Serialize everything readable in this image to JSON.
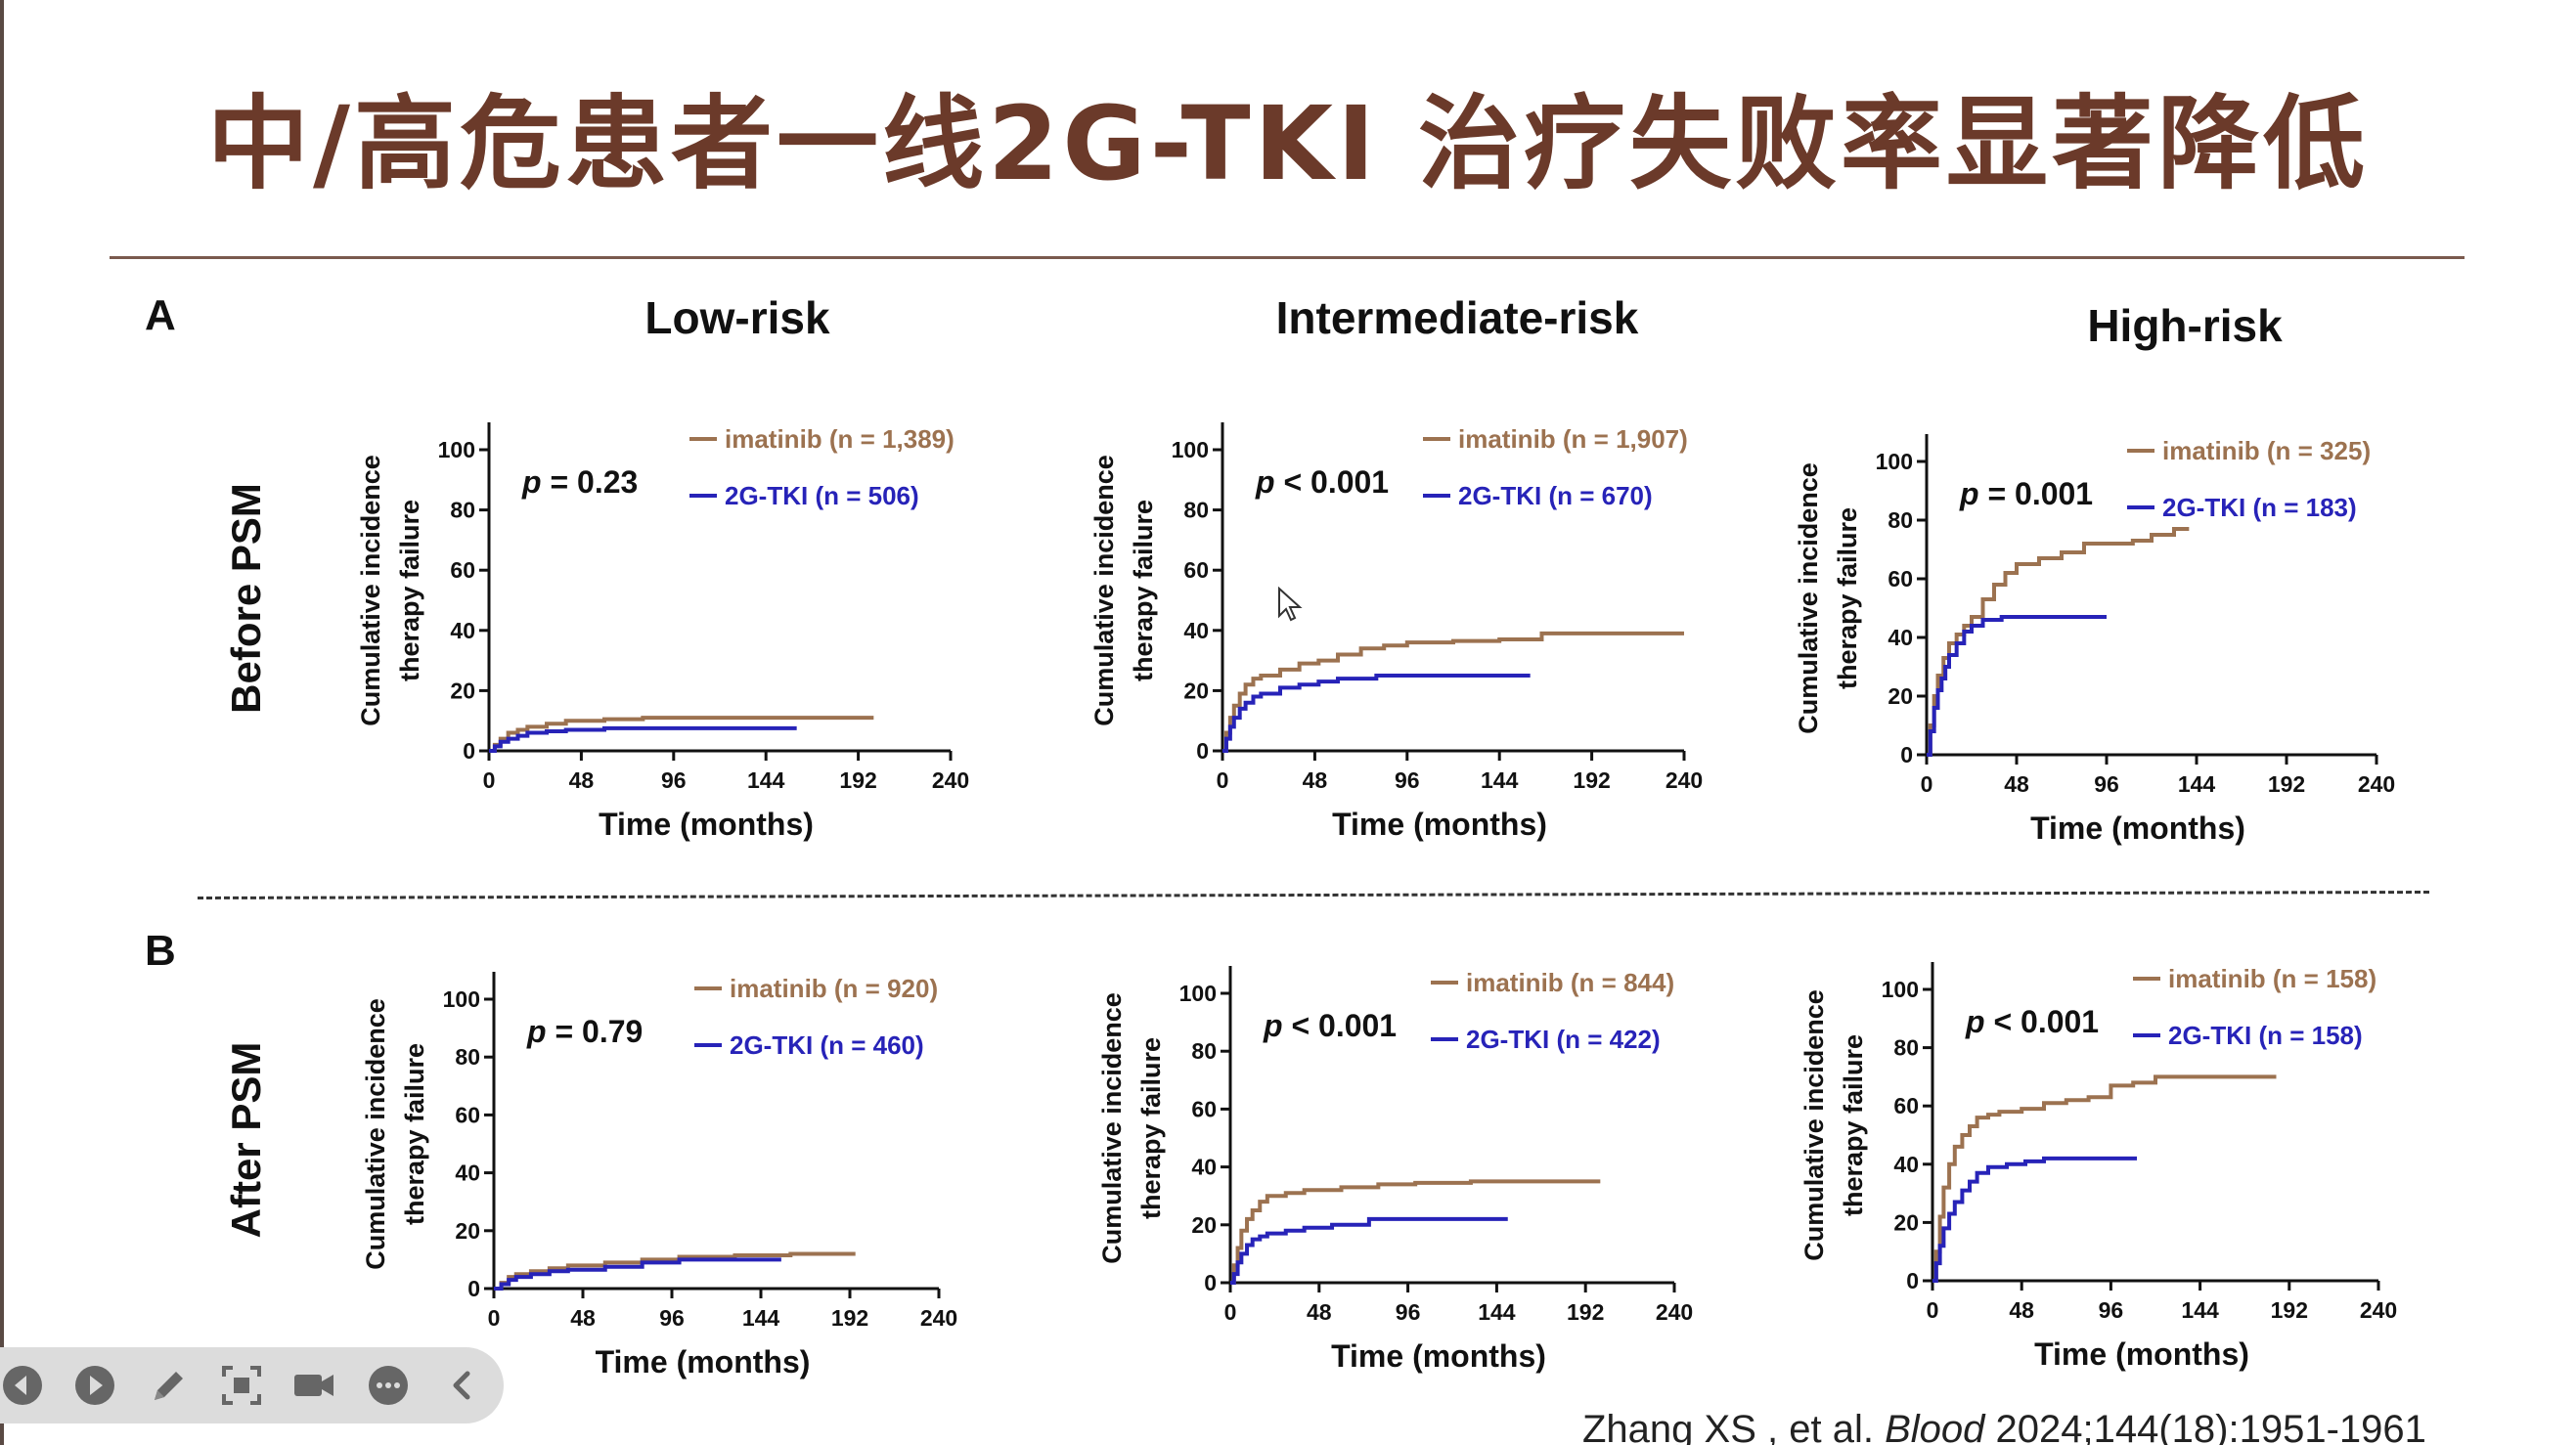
{
  "slide": {
    "title": "中/高危患者一线2G-TKI 治疗失败率显著降低",
    "panel_a": "A",
    "panel_b": "B",
    "row_before": "Before PSM",
    "row_after": "After PSM",
    "risk_low": "Low-risk",
    "risk_intermediate": "Intermediate-risk",
    "risk_high": "High-risk"
  },
  "citation": {
    "authors": "Zhang XS , et al.",
    "journal": "Blood",
    "details": "2024;144(18):1951-1961"
  },
  "colors": {
    "imatinib": "#9c7250",
    "tki": "#2723b8",
    "title": "#6b3a2a"
  },
  "toolbar": {
    "buttons": [
      "prev-icon",
      "play-icon",
      "pen-icon",
      "screenshot-icon",
      "camera-icon",
      "more-icon",
      "collapse-icon"
    ]
  },
  "chart_data": [
    {
      "type": "line",
      "panel": "A",
      "risk": "Low-risk",
      "psm": "Before PSM",
      "ylabel": [
        "Cumulative incidence",
        "therapy failure"
      ],
      "xlabel": "Time (months)",
      "xticks": [
        0,
        48,
        96,
        144,
        192,
        240
      ],
      "yticks": [
        0,
        20,
        40,
        60,
        80,
        100
      ],
      "xlim": [
        0,
        240
      ],
      "ylim": [
        0,
        100
      ],
      "p_label": "p",
      "p_text": "= 0.23",
      "series": [
        {
          "name": "imatinib (n = 1,389)",
          "color": "#9c7250",
          "x": [
            0,
            3,
            6,
            10,
            15,
            20,
            30,
            40,
            60,
            80,
            100,
            130,
            160,
            200
          ],
          "y": [
            0,
            2,
            4,
            6,
            7,
            8,
            9,
            10,
            10.5,
            11,
            11,
            11,
            11,
            11
          ]
        },
        {
          "name": "2G-TKI (n = 506)",
          "color": "#2723b8",
          "x": [
            0,
            3,
            6,
            10,
            15,
            20,
            30,
            40,
            60,
            80,
            100,
            130,
            160
          ],
          "y": [
            0,
            1.5,
            3,
            4,
            5,
            6,
            6.5,
            7,
            7.5,
            7.5,
            7.5,
            7.5,
            7.5
          ]
        }
      ]
    },
    {
      "type": "line",
      "panel": "A",
      "risk": "Intermediate-risk",
      "psm": "Before PSM",
      "ylabel": [
        "Cumulative incidence",
        "therapy failure"
      ],
      "xlabel": "Time (months)",
      "xticks": [
        0,
        48,
        96,
        144,
        192,
        240
      ],
      "yticks": [
        0,
        20,
        40,
        60,
        80,
        100
      ],
      "xlim": [
        0,
        240
      ],
      "ylim": [
        0,
        100
      ],
      "p_label": "p",
      "p_text": "< 0.001",
      "series": [
        {
          "name": "imatinib (n = 1,907)",
          "color": "#9c7250",
          "x": [
            0,
            2,
            4,
            6,
            9,
            12,
            16,
            20,
            30,
            40,
            50,
            60,
            72,
            84,
            96,
            120,
            144,
            165,
            166,
            200,
            240
          ],
          "y": [
            0,
            6,
            11,
            15,
            19,
            22,
            24,
            25,
            27,
            29,
            30,
            32,
            34,
            35,
            36,
            36.5,
            37,
            37,
            39,
            39,
            39
          ]
        },
        {
          "name": "2G-TKI (n = 670)",
          "color": "#2723b8",
          "x": [
            0,
            2,
            4,
            6,
            9,
            12,
            16,
            20,
            30,
            40,
            50,
            60,
            80,
            100,
            120,
            140,
            160
          ],
          "y": [
            0,
            4,
            8,
            11,
            14,
            16,
            18,
            19,
            21,
            22,
            23,
            24,
            25,
            25,
            25,
            25,
            25
          ]
        }
      ]
    },
    {
      "type": "line",
      "panel": "A",
      "risk": "High-risk",
      "psm": "Before PSM",
      "ylabel": [
        "Cumulative incidence",
        "therapy failure"
      ],
      "xlabel": "Time (months)",
      "xticks": [
        0,
        48,
        96,
        144,
        192,
        240
      ],
      "yticks": [
        0,
        20,
        40,
        60,
        80,
        100
      ],
      "xlim": [
        0,
        240
      ],
      "ylim": [
        0,
        100
      ],
      "p_label": "p",
      "p_text": "= 0.001",
      "series": [
        {
          "name": "imatinib (n = 325)",
          "color": "#9c7250",
          "x": [
            0,
            2,
            4,
            6,
            9,
            12,
            16,
            20,
            24,
            30,
            36,
            42,
            48,
            60,
            72,
            84,
            96,
            110,
            120,
            132,
            140
          ],
          "y": [
            0,
            10,
            20,
            27,
            33,
            38,
            41,
            44,
            47,
            53,
            58,
            62,
            65,
            67,
            69,
            72,
            72,
            73,
            75,
            77,
            77
          ]
        },
        {
          "name": "2G-TKI (n = 183)",
          "color": "#2723b8",
          "x": [
            0,
            2,
            4,
            6,
            8,
            10,
            12,
            16,
            20,
            24,
            30,
            40,
            60,
            80,
            96
          ],
          "y": [
            0,
            8,
            16,
            22,
            26,
            30,
            34,
            38,
            42,
            44,
            46,
            47,
            47,
            47,
            47
          ]
        }
      ]
    },
    {
      "type": "line",
      "panel": "B",
      "risk": "Low-risk",
      "psm": "After PSM",
      "ylabel": [
        "Cumulative incidence",
        "therapy failure"
      ],
      "xlabel": "Time (months)",
      "xticks": [
        0,
        48,
        96,
        144,
        192,
        240
      ],
      "yticks": [
        0,
        20,
        40,
        60,
        80,
        100
      ],
      "xlim": [
        0,
        240
      ],
      "ylim": [
        0,
        100
      ],
      "p_label": "p",
      "p_text": "= 0.79",
      "series": [
        {
          "name": "imatinib (n = 920)",
          "color": "#9c7250",
          "x": [
            0,
            4,
            8,
            12,
            20,
            30,
            40,
            60,
            80,
            100,
            130,
            160,
            195
          ],
          "y": [
            0,
            2,
            4,
            5,
            6,
            7,
            8,
            9,
            10,
            11,
            11.5,
            12,
            12
          ]
        },
        {
          "name": "2G-TKI (n = 460)",
          "color": "#2723b8",
          "x": [
            0,
            4,
            8,
            12,
            20,
            30,
            40,
            60,
            80,
            100,
            130,
            155
          ],
          "y": [
            0,
            1.5,
            3,
            4,
            5,
            6,
            6.5,
            7.5,
            9,
            10,
            10,
            10
          ]
        }
      ]
    },
    {
      "type": "line",
      "panel": "B",
      "risk": "Intermediate-risk",
      "psm": "After PSM",
      "ylabel": [
        "Cumulative incidence",
        "therapy failure"
      ],
      "xlabel": "Time (months)",
      "xticks": [
        0,
        48,
        96,
        144,
        192,
        240
      ],
      "yticks": [
        0,
        20,
        40,
        60,
        80,
        100
      ],
      "xlim": [
        0,
        240
      ],
      "ylim": [
        0,
        100
      ],
      "p_label": "p",
      "p_text": "< 0.001",
      "series": [
        {
          "name": "imatinib (n = 844)",
          "color": "#9c7250",
          "x": [
            0,
            2,
            4,
            6,
            9,
            12,
            16,
            20,
            30,
            40,
            60,
            80,
            100,
            130,
            160,
            180,
            200
          ],
          "y": [
            0,
            6,
            12,
            18,
            22,
            25,
            28,
            30,
            31,
            32,
            33,
            34,
            34.5,
            35,
            35,
            35,
            35
          ]
        },
        {
          "name": "2G-TKI (n = 422)",
          "color": "#2723b8",
          "x": [
            0,
            2,
            4,
            6,
            9,
            12,
            16,
            20,
            30,
            40,
            55,
            75,
            100,
            130,
            150
          ],
          "y": [
            0,
            3,
            7,
            10,
            13,
            15,
            16,
            17,
            18,
            19,
            20,
            22,
            22,
            22,
            22
          ]
        }
      ]
    },
    {
      "type": "line",
      "panel": "B",
      "risk": "High-risk",
      "psm": "After PSM",
      "ylabel": [
        "Cumulative incidence",
        "therapy failure"
      ],
      "xlabel": "Time (months)",
      "xticks": [
        0,
        48,
        96,
        144,
        192,
        240
      ],
      "yticks": [
        0,
        20,
        40,
        60,
        80,
        100
      ],
      "xlim": [
        0,
        240
      ],
      "ylim": [
        0,
        100
      ],
      "p_label": "p",
      "p_text": "< 0.001",
      "series": [
        {
          "name": "imatinib (n = 158)",
          "color": "#9c7250",
          "x": [
            0,
            2,
            4,
            6,
            9,
            12,
            16,
            20,
            24,
            30,
            36,
            48,
            60,
            72,
            84,
            96,
            108,
            120,
            150,
            185
          ],
          "y": [
            0,
            10,
            22,
            32,
            40,
            46,
            50,
            53,
            56,
            57,
            58,
            59,
            61,
            62,
            63,
            67,
            68,
            70,
            70,
            70
          ]
        },
        {
          "name": "2G-TKI (n = 158)",
          "color": "#2723b8",
          "x": [
            0,
            2,
            4,
            6,
            9,
            12,
            16,
            20,
            24,
            30,
            40,
            50,
            60,
            80,
            100,
            110
          ],
          "y": [
            0,
            6,
            12,
            18,
            23,
            27,
            31,
            34,
            37,
            39,
            40,
            41,
            42,
            42,
            42,
            42
          ]
        }
      ]
    }
  ]
}
